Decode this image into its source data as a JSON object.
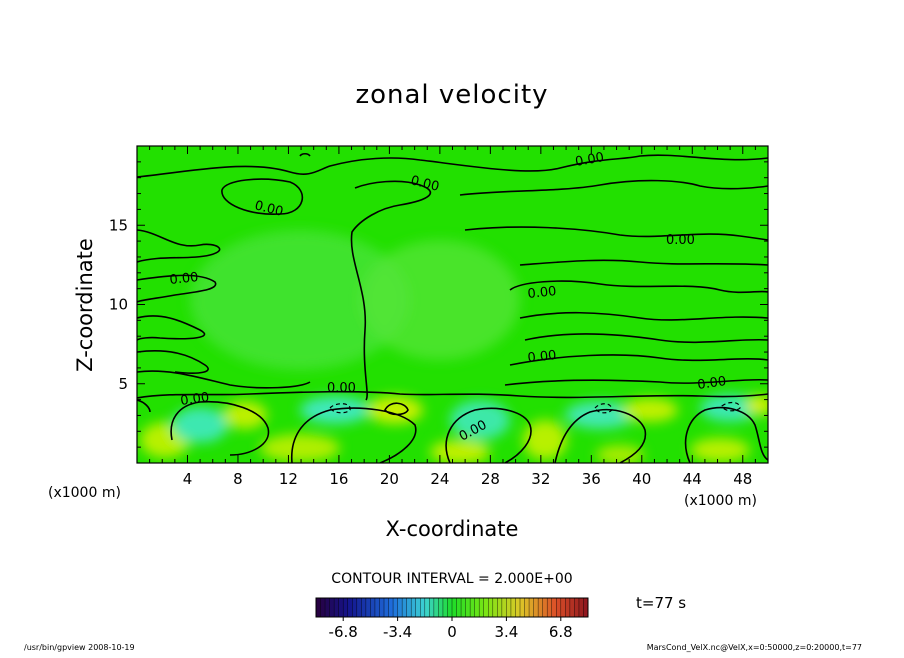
{
  "chart_data": {
    "type": "heatmap",
    "title": "zonal velocity",
    "xlabel": "X-coordinate",
    "ylabel": "Z-coordinate",
    "x_unit": "(x1000 m)",
    "y_unit": "(x1000 m)",
    "xlim": [
      0,
      50
    ],
    "ylim": [
      0,
      20
    ],
    "x_ticks": [
      "4",
      "8",
      "12",
      "16",
      "20",
      "24",
      "28",
      "32",
      "36",
      "40",
      "44",
      "48"
    ],
    "y_ticks": [
      "5",
      "10",
      "15"
    ],
    "contour_interval": "CONTOUR INTERVAL = 2.000E+00",
    "contour_labels": [
      "0.00",
      "0.00",
      "0.00",
      "0.00",
      "0.00",
      "0.00",
      "0.00",
      "0.00",
      "0.00",
      "0.00",
      "0.00"
    ],
    "colorbar": {
      "ticks": [
        "-6.8",
        "-3.4",
        "0",
        "3.4",
        "6.8"
      ],
      "range": [
        -8.5,
        8.5
      ]
    },
    "time_label": "t=77 s",
    "footer_left": "/usr/bin/gpview   2008-10-19",
    "footer_right": "MarsCond_VelX.nc@VelX,x=0:50000,z=0:20000,t=77",
    "colors": {
      "background_field": "#22e000",
      "negative": "#3ee8b0",
      "positive": "#c8f000",
      "contour": "#000000"
    }
  }
}
